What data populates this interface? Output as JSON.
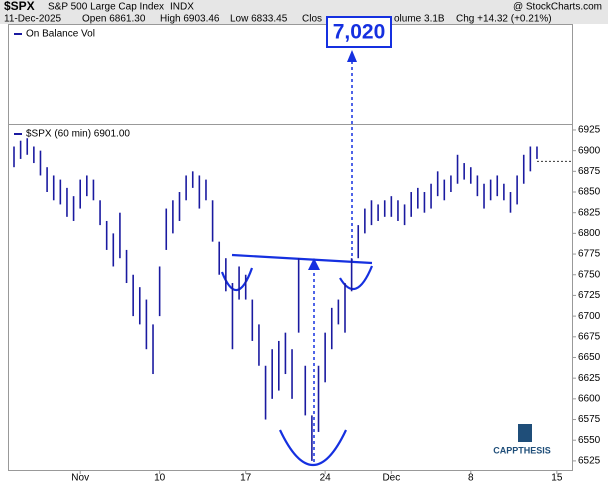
{
  "header": {
    "symbol": "$SPX",
    "name": "S&P 500 Large Cap Index",
    "exchange": "INDX",
    "brand": "@ StockCharts.com",
    "date": "11-Dec-2025",
    "open": "Open 6861.30",
    "high": "High 6903.46",
    "low": "Low 6833.45",
    "close": "Clos",
    "volume": "olume 3.1B",
    "change": "Chg +14.32 (+0.21%)"
  },
  "indicator_legend": "On Balance Vol",
  "annotation": {
    "target": "7,020"
  },
  "logo": "CAPPTHESIS",
  "chart_data": {
    "type": "ohlc",
    "legend": "$SPX (60 min) 6901.00",
    "color": "#1a1aa0",
    "last_line": 6887,
    "categories": [
      null,
      null,
      null,
      null,
      null,
      null,
      null,
      null,
      null,
      null,
      "Nov",
      null,
      null,
      null,
      null,
      null,
      null,
      null,
      null,
      null,
      null,
      null,
      "10",
      null,
      null,
      null,
      null,
      null,
      null,
      null,
      null,
      null,
      null,
      null,
      null,
      "17",
      null,
      null,
      null,
      null,
      null,
      null,
      null,
      null,
      null,
      null,
      null,
      "24",
      null,
      null,
      null,
      null,
      null,
      null,
      null,
      null,
      null,
      "Dec",
      null,
      null,
      null,
      null,
      null,
      null,
      null,
      null,
      null,
      null,
      null,
      "8",
      null,
      null,
      null,
      null,
      null,
      null,
      null,
      null,
      null,
      null,
      null,
      null,
      "15",
      null
    ],
    "high": [
      6905,
      6912,
      6915,
      6905,
      6900,
      6880,
      6870,
      6865,
      6855,
      6845,
      6865,
      6870,
      6865,
      6840,
      6815,
      6800,
      6825,
      6780,
      6750,
      6735,
      6720,
      6690,
      6760,
      6830,
      6840,
      6850,
      6870,
      6875,
      6870,
      6865,
      6840,
      6790,
      6770,
      6740,
      6760,
      6750,
      6720,
      6690,
      6640,
      6660,
      6670,
      6680,
      6660,
      6770,
      6640,
      6580,
      6640,
      6680,
      6710,
      6720,
      6740,
      6770,
      6810,
      6830,
      6840,
      6835,
      6840,
      6845,
      6840,
      6835,
      6850,
      6855,
      6850,
      6860,
      6875,
      6865,
      6870,
      6895,
      6885,
      6880,
      6870,
      6860,
      6865,
      6870,
      6860,
      6850,
      6870,
      6895,
      6905,
      6905,
      null,
      null,
      null,
      null
    ],
    "low": [
      6880,
      6890,
      6895,
      6885,
      6870,
      6850,
      6840,
      6835,
      6820,
      6815,
      6830,
      6845,
      6840,
      6810,
      6780,
      6760,
      6770,
      6740,
      6700,
      6690,
      6660,
      6630,
      6700,
      6780,
      6800,
      6815,
      6840,
      6855,
      6830,
      6840,
      6790,
      6750,
      6730,
      6660,
      6720,
      6720,
      6670,
      6640,
      6575,
      6600,
      6610,
      6630,
      6600,
      6680,
      6580,
      6525,
      6560,
      6620,
      6660,
      6690,
      6680,
      6730,
      6770,
      6800,
      6810,
      6815,
      6820,
      6820,
      6815,
      6810,
      6820,
      6830,
      6825,
      6830,
      6845,
      6840,
      6850,
      6860,
      6865,
      6860,
      6845,
      6830,
      6840,
      6845,
      6840,
      6825,
      6835,
      6860,
      6875,
      6890,
      null,
      null,
      null,
      null
    ],
    "ylim": [
      6514,
      6931
    ],
    "yticks": [
      6525,
      6550,
      6575,
      6600,
      6625,
      6650,
      6675,
      6700,
      6725,
      6750,
      6775,
      6800,
      6825,
      6850,
      6875,
      6900,
      6925
    ],
    "grid": false
  }
}
